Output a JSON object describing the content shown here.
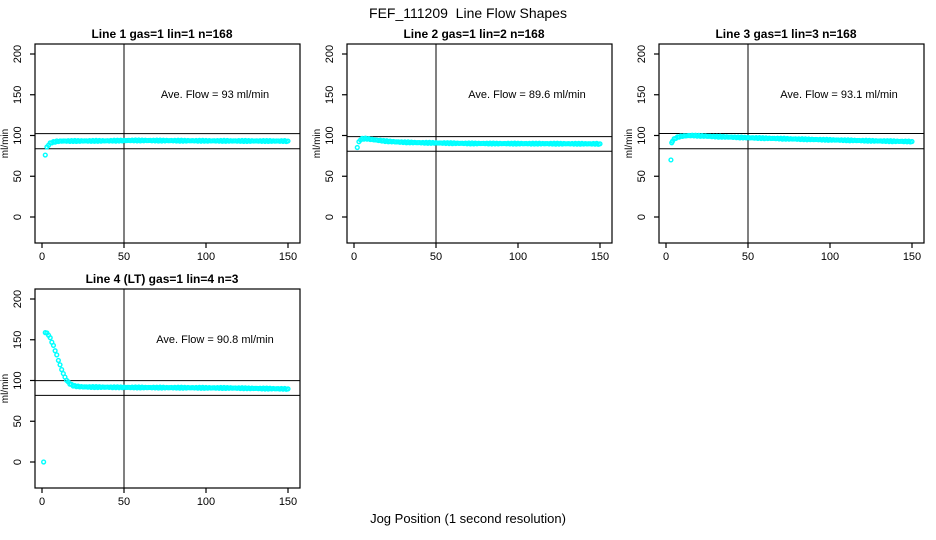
{
  "page": {
    "title": "FEF_111209  Line Flow Shapes",
    "xlabel": "Jog Position (1 second resolution)"
  },
  "colors": {
    "marker": "#00FFFF",
    "axis": "#000000",
    "background": "#FFFFFF"
  },
  "chart_data": [
    {
      "type": "scatter",
      "title": "Line 1 gas=1 lin=1 n=168",
      "annotation": "Ave. Flow =  93  ml/min",
      "ave_flow": 93,
      "ylabel": "ml/min",
      "xticks": [
        0,
        50,
        100,
        150
      ],
      "yticks": [
        0,
        50,
        100,
        150,
        200
      ],
      "xlim": [
        -4,
        157
      ],
      "ylim": [
        -32,
        212
      ],
      "vline_x": 50,
      "hlines": [
        102.3,
        83.7
      ],
      "outliers": [
        [
          2,
          76
        ]
      ],
      "points": [
        [
          3,
          85.5
        ],
        [
          4,
          88.5
        ],
        [
          5,
          90.5
        ],
        [
          6,
          91.5
        ],
        [
          7,
          92
        ],
        [
          9,
          92.8
        ],
        [
          12,
          93.2
        ],
        [
          20,
          93.3
        ],
        [
          40,
          93.5
        ],
        [
          55,
          94
        ],
        [
          70,
          93.8
        ],
        [
          100,
          93.5
        ],
        [
          130,
          93.3
        ],
        [
          150,
          93.2
        ]
      ]
    },
    {
      "type": "scatter",
      "title": "Line 2 gas=1 lin=2 n=168",
      "annotation": "Ave. Flow =  89.6  ml/min",
      "ave_flow": 89.6,
      "ylabel": "ml/min",
      "xticks": [
        0,
        50,
        100,
        150
      ],
      "yticks": [
        0,
        50,
        100,
        150,
        200
      ],
      "xlim": [
        -4,
        157
      ],
      "ylim": [
        -32,
        212
      ],
      "vline_x": 50,
      "hlines": [
        98.6,
        80.6
      ],
      "outliers": [],
      "points": [
        [
          2,
          85.5
        ],
        [
          3,
          92
        ],
        [
          4,
          95
        ],
        [
          5,
          96
        ],
        [
          7,
          96.2
        ],
        [
          9,
          95.8
        ],
        [
          12,
          94.8
        ],
        [
          16,
          93.8
        ],
        [
          20,
          93
        ],
        [
          25,
          92.3
        ],
        [
          30,
          91.8
        ],
        [
          40,
          91.2
        ],
        [
          55,
          90.7
        ],
        [
          70,
          90.3
        ],
        [
          90,
          90.1
        ],
        [
          120,
          90
        ],
        [
          150,
          89.8
        ]
      ]
    },
    {
      "type": "scatter",
      "title": "Line 3 gas=1 lin=3 n=168",
      "annotation": "Ave. Flow =  93.1  ml/min",
      "ave_flow": 93.1,
      "ylabel": "ml/min",
      "xticks": [
        0,
        50,
        100,
        150
      ],
      "yticks": [
        0,
        50,
        100,
        150,
        200
      ],
      "xlim": [
        -4,
        157
      ],
      "ylim": [
        -32,
        212
      ],
      "vline_x": 50,
      "hlines": [
        102.4,
        83.8
      ],
      "outliers": [
        [
          3,
          70
        ]
      ],
      "points": [
        [
          3.5,
          91.5
        ],
        [
          4,
          93.5
        ],
        [
          5,
          95.5
        ],
        [
          6,
          97
        ],
        [
          8,
          98.5
        ],
        [
          10,
          99.3
        ],
        [
          13,
          99.8
        ],
        [
          16,
          100
        ],
        [
          20,
          99.7
        ],
        [
          25,
          99.2
        ],
        [
          30,
          98.7
        ],
        [
          40,
          98
        ],
        [
          50,
          97.3
        ],
        [
          60,
          96.7
        ],
        [
          75,
          95.9
        ],
        [
          90,
          95.1
        ],
        [
          105,
          94.4
        ],
        [
          120,
          93.7
        ],
        [
          135,
          93.1
        ],
        [
          150,
          92.6
        ]
      ]
    },
    {
      "type": "scatter",
      "title": "Line 4 (LT) gas=1 lin=4 n=3",
      "annotation": "Ave. Flow =  90.8  ml/min",
      "ave_flow": 90.8,
      "ylabel": "ml/min",
      "xticks": [
        0,
        50,
        100,
        150
      ],
      "yticks": [
        0,
        50,
        100,
        150,
        200
      ],
      "xlim": [
        -4,
        157
      ],
      "ylim": [
        -32,
        212
      ],
      "vline_x": 50,
      "hlines": [
        99.9,
        81.7
      ],
      "outliers": [
        [
          1,
          0
        ]
      ],
      "points": [
        [
          2,
          159
        ],
        [
          3,
          158
        ],
        [
          4,
          156
        ],
        [
          5,
          152
        ],
        [
          6,
          147.5
        ],
        [
          7,
          142.5
        ],
        [
          8,
          137
        ],
        [
          9,
          131
        ],
        [
          10,
          125
        ],
        [
          11,
          119
        ],
        [
          12,
          113.5
        ],
        [
          13,
          108.5
        ],
        [
          14,
          104
        ],
        [
          15,
          100.5
        ],
        [
          16,
          98
        ],
        [
          17,
          96
        ],
        [
          18,
          94.7
        ],
        [
          19,
          93.8
        ],
        [
          20,
          93.2
        ],
        [
          22,
          92.6
        ],
        [
          25,
          92.2
        ],
        [
          30,
          92
        ],
        [
          40,
          91.8
        ],
        [
          55,
          91.5
        ],
        [
          70,
          91.3
        ],
        [
          85,
          91.2
        ],
        [
          100,
          91
        ],
        [
          115,
          90.8
        ],
        [
          130,
          90.3
        ],
        [
          140,
          90
        ],
        [
          150,
          89.7
        ]
      ]
    }
  ]
}
